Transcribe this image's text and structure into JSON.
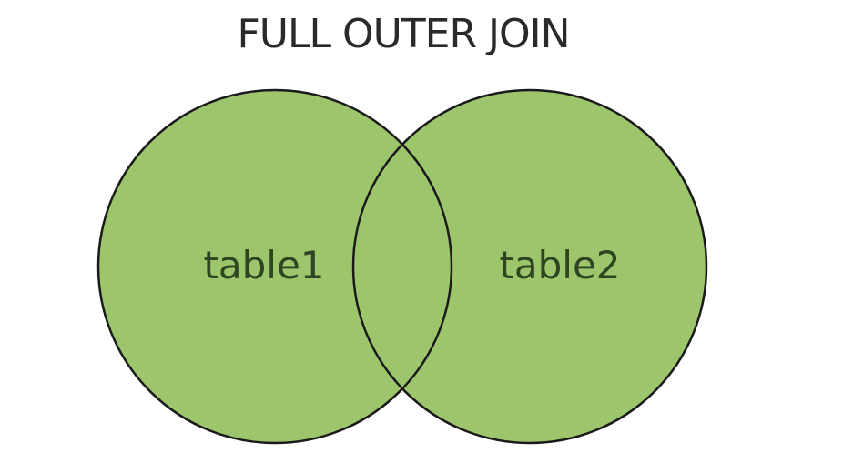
{
  "diagram": {
    "title": "FULL OUTER JOIN",
    "left_set": {
      "label": "table1"
    },
    "right_set": {
      "label": "table2"
    },
    "colors": {
      "fill": "#9dc56c",
      "stroke": "#1a1a1a",
      "label": "#2f4420",
      "title": "#2a2a2a"
    }
  }
}
